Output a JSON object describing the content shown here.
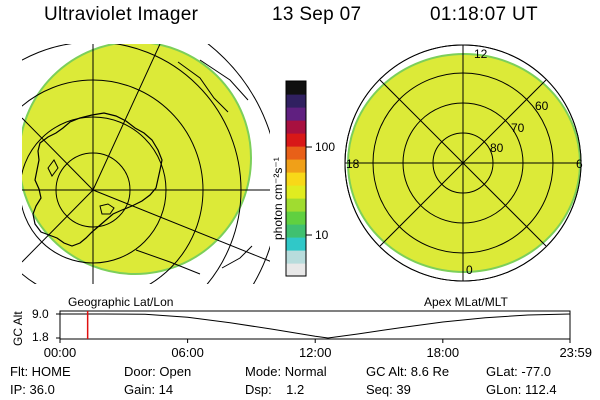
{
  "header": {
    "title": "Ultraviolet Imager",
    "date": "13 Sep 07",
    "time": "01:18:07 UT"
  },
  "left_panel": {
    "label": "Geographic Lat/Lon"
  },
  "right_panel": {
    "label": "Apex MLat/MLT",
    "mlt_labels": {
      "top": "12",
      "left": "18",
      "right": "6",
      "bottom": "0"
    },
    "lat_labels": [
      "60",
      "70",
      "80"
    ]
  },
  "colorbar": {
    "unit_label": "photon cm⁻²s⁻¹",
    "tick_labels": [
      "100",
      "10"
    ],
    "scale": "log",
    "colors": [
      "#e8e8e8",
      "#b8dcdc",
      "#30c8c8",
      "#40c070",
      "#60d040",
      "#a0dc30",
      "#e0ec20",
      "#f8d818",
      "#f0a018",
      "#e86018",
      "#d81818",
      "#a81040",
      "#602080",
      "#302060",
      "#101010"
    ]
  },
  "chart_data": {
    "type": "line",
    "title": "GC Alt",
    "ylabel": "GC Alt",
    "y_tick_labels": [
      "9.0",
      "1.8"
    ],
    "x_tick_labels": [
      "00:00",
      "06:00",
      "12:00",
      "18:00",
      "23:59"
    ],
    "ylim": [
      1.8,
      9.0
    ],
    "x": [
      0,
      2,
      4,
      6,
      8,
      10,
      12,
      12.6,
      14,
      16,
      18,
      20,
      22,
      23.98
    ],
    "series": [
      {
        "values": [
          9.0,
          9.0,
          8.9,
          8.0,
          6.4,
          4.4,
          2.3,
          1.8,
          3.0,
          4.9,
          6.6,
          7.9,
          8.7,
          9.0
        ]
      }
    ],
    "marker_time": 1.3
  },
  "info": {
    "flt": "Flt: HOME",
    "ip": "IP: 36.0",
    "door": "Door: Open",
    "gain": "Gain: 14",
    "mode": "Mode: Normal",
    "dsp": "Dsp:    1.2",
    "gc_alt": "GC Alt: 8.6 Re",
    "seq": "Seq: 39",
    "glat": "GLat: -77.0",
    "glon": "GLon: 112.4"
  }
}
